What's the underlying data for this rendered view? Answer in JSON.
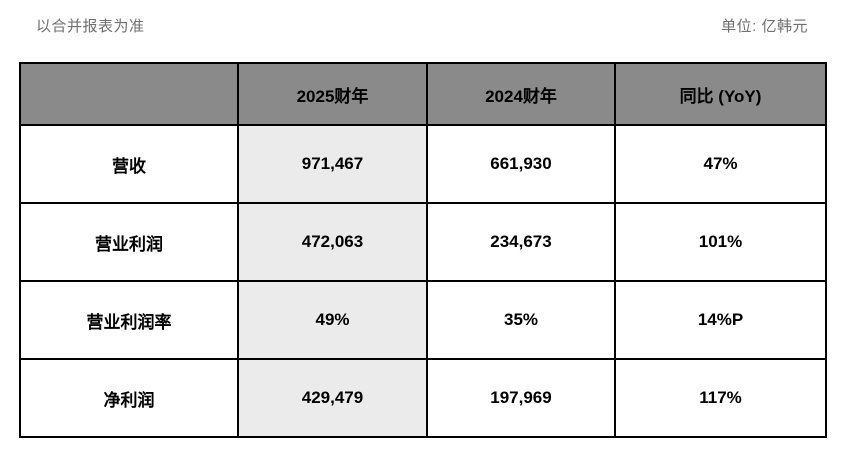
{
  "meta": {
    "note_left": "以合并报表为准",
    "note_right": "单位: 亿韩元"
  },
  "colors": {
    "header_bg": "#8a8a8a",
    "highlight_col_bg": "#ebebeb",
    "border": "#000000",
    "note_text": "#6f6f6f"
  },
  "table": {
    "headers": {
      "metric": "",
      "fy2025": "2025财年",
      "fy2024": "2024财年",
      "yoy": "同比 (YoY)"
    },
    "rows": [
      {
        "label": "营收",
        "fy2025": "971,467",
        "fy2024": "661,930",
        "yoy": "47%"
      },
      {
        "label": "营业利润",
        "fy2025": "472,063",
        "fy2024": "234,673",
        "yoy": "101%"
      },
      {
        "label": "营业利润率",
        "fy2025": "49%",
        "fy2024": "35%",
        "yoy": "14%P"
      },
      {
        "label": "净利润",
        "fy2025": "429,479",
        "fy2024": "197,969",
        "yoy": "117%"
      }
    ]
  },
  "chart_data": {
    "type": "table",
    "title": "以合并报表为准",
    "unit": "亿韩元",
    "columns": [
      "",
      "2025财年",
      "2024财年",
      "同比 (YoY)"
    ],
    "rows": [
      [
        "营收",
        "971,467",
        "661,930",
        "47%"
      ],
      [
        "营业利润",
        "472,063",
        "234,673",
        "101%"
      ],
      [
        "营业利润率",
        "49%",
        "35%",
        "14%P"
      ],
      [
        "净利润",
        "429,479",
        "197,969",
        "117%"
      ]
    ]
  }
}
